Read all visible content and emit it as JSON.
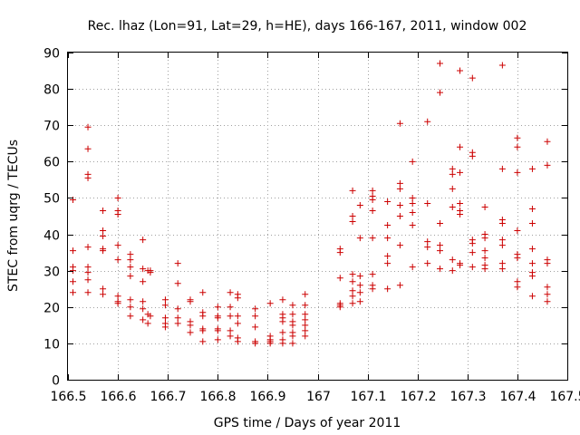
{
  "chart_data": {
    "type": "scatter",
    "title": "Rec. lhaz (Lon=91, Lat=29, h=HE), days 166-167, 2011, window 002",
    "xlabel": "GPS time / Days of year 2011",
    "ylabel": "STEC from uqrg / TECUs",
    "xlim": [
      166.5,
      167.5
    ],
    "ylim": [
      0,
      90
    ],
    "xticks": [
      "166.5",
      "166.6",
      "166.7",
      "166.8",
      "166.9",
      "167",
      "167.1",
      "167.2",
      "167.3",
      "167.4",
      "167.5"
    ],
    "yticks": [
      "0",
      "10",
      "20",
      "30",
      "40",
      "50",
      "60",
      "70",
      "80",
      "90"
    ],
    "grid": true,
    "marker_color": "#cc0000",
    "points": [
      [
        166.51,
        49.5
      ],
      [
        166.51,
        35.5
      ],
      [
        166.51,
        31
      ],
      [
        166.51,
        30
      ],
      [
        166.51,
        27
      ],
      [
        166.51,
        24
      ],
      [
        166.54,
        69.5
      ],
      [
        166.54,
        63.5
      ],
      [
        166.54,
        56.5
      ],
      [
        166.54,
        55.5
      ],
      [
        166.54,
        36.5
      ],
      [
        166.54,
        31
      ],
      [
        166.54,
        29.5
      ],
      [
        166.54,
        27.5
      ],
      [
        166.54,
        24
      ],
      [
        166.57,
        46.5
      ],
      [
        166.57,
        41
      ],
      [
        166.57,
        39.5
      ],
      [
        166.57,
        36
      ],
      [
        166.57,
        35.5
      ],
      [
        166.57,
        25
      ],
      [
        166.57,
        23.5
      ],
      [
        166.6,
        50
      ],
      [
        166.6,
        46.5
      ],
      [
        166.6,
        45.5
      ],
      [
        166.6,
        37
      ],
      [
        166.6,
        33
      ],
      [
        166.6,
        23
      ],
      [
        166.6,
        21.5
      ],
      [
        166.6,
        21
      ],
      [
        166.625,
        34.5
      ],
      [
        166.625,
        33
      ],
      [
        166.625,
        31
      ],
      [
        166.625,
        28.5
      ],
      [
        166.625,
        22
      ],
      [
        166.625,
        20
      ],
      [
        166.625,
        17.5
      ],
      [
        166.65,
        38.5
      ],
      [
        166.65,
        30.5
      ],
      [
        166.65,
        27
      ],
      [
        166.65,
        21.5
      ],
      [
        166.65,
        19.5
      ],
      [
        166.65,
        16.5
      ],
      [
        166.66,
        30
      ],
      [
        166.66,
        18
      ],
      [
        166.66,
        15.5
      ],
      [
        166.665,
        30
      ],
      [
        166.665,
        29.5
      ],
      [
        166.665,
        17.5
      ],
      [
        166.695,
        22
      ],
      [
        166.695,
        20.5
      ],
      [
        166.695,
        17
      ],
      [
        166.695,
        15.5
      ],
      [
        166.695,
        14.5
      ],
      [
        166.72,
        32
      ],
      [
        166.72,
        26.5
      ],
      [
        166.72,
        19.5
      ],
      [
        166.72,
        17
      ],
      [
        166.72,
        15.5
      ],
      [
        166.745,
        22
      ],
      [
        166.745,
        21.5
      ],
      [
        166.745,
        16
      ],
      [
        166.745,
        15
      ],
      [
        166.745,
        13
      ],
      [
        166.77,
        24
      ],
      [
        166.77,
        18.5
      ],
      [
        166.77,
        17.5
      ],
      [
        166.77,
        14
      ],
      [
        166.77,
        13.5
      ],
      [
        166.77,
        10.5
      ],
      [
        166.8,
        20
      ],
      [
        166.8,
        17.5
      ],
      [
        166.8,
        17
      ],
      [
        166.8,
        14
      ],
      [
        166.8,
        13.5
      ],
      [
        166.8,
        11
      ],
      [
        166.825,
        24
      ],
      [
        166.825,
        20
      ],
      [
        166.825,
        17.5
      ],
      [
        166.825,
        13.5
      ],
      [
        166.825,
        12
      ],
      [
        166.84,
        23.5
      ],
      [
        166.84,
        22.5
      ],
      [
        166.84,
        17.5
      ],
      [
        166.84,
        15.5
      ],
      [
        166.84,
        11.5
      ],
      [
        166.84,
        10.5
      ],
      [
        166.875,
        19.5
      ],
      [
        166.875,
        17.5
      ],
      [
        166.875,
        14.5
      ],
      [
        166.875,
        10.5
      ],
      [
        166.875,
        10
      ],
      [
        166.905,
        21
      ],
      [
        166.905,
        12
      ],
      [
        166.905,
        11
      ],
      [
        166.905,
        10.5
      ],
      [
        166.905,
        10
      ],
      [
        166.93,
        22
      ],
      [
        166.93,
        18
      ],
      [
        166.93,
        17
      ],
      [
        166.93,
        16
      ],
      [
        166.93,
        13
      ],
      [
        166.93,
        11
      ],
      [
        166.93,
        10
      ],
      [
        166.95,
        20.5
      ],
      [
        166.95,
        18
      ],
      [
        166.95,
        16
      ],
      [
        166.95,
        15
      ],
      [
        166.95,
        13
      ],
      [
        166.95,
        12
      ],
      [
        166.95,
        10
      ],
      [
        166.975,
        23.5
      ],
      [
        166.975,
        20.5
      ],
      [
        166.975,
        18
      ],
      [
        166.975,
        16.5
      ],
      [
        166.975,
        15
      ],
      [
        166.975,
        13.5
      ],
      [
        166.975,
        12
      ],
      [
        167.045,
        36
      ],
      [
        167.045,
        35
      ],
      [
        167.045,
        28
      ],
      [
        167.045,
        21
      ],
      [
        167.045,
        20.5
      ],
      [
        167.045,
        20
      ],
      [
        167.07,
        52
      ],
      [
        167.07,
        45
      ],
      [
        167.07,
        43.5
      ],
      [
        167.07,
        29
      ],
      [
        167.07,
        27
      ],
      [
        167.07,
        24.5
      ],
      [
        167.07,
        23
      ],
      [
        167.07,
        21
      ],
      [
        167.085,
        48
      ],
      [
        167.085,
        39
      ],
      [
        167.085,
        28.5
      ],
      [
        167.085,
        26
      ],
      [
        167.085,
        24
      ],
      [
        167.085,
        21.5
      ],
      [
        167.11,
        52
      ],
      [
        167.11,
        50.5
      ],
      [
        167.11,
        49.5
      ],
      [
        167.11,
        46.5
      ],
      [
        167.11,
        39
      ],
      [
        167.11,
        29
      ],
      [
        167.11,
        26
      ],
      [
        167.11,
        25
      ],
      [
        167.14,
        49
      ],
      [
        167.14,
        42.5
      ],
      [
        167.14,
        39
      ],
      [
        167.14,
        34
      ],
      [
        167.14,
        32
      ],
      [
        167.14,
        25
      ],
      [
        167.165,
        70.5
      ],
      [
        167.165,
        54
      ],
      [
        167.165,
        52.5
      ],
      [
        167.165,
        48
      ],
      [
        167.165,
        45
      ],
      [
        167.165,
        37
      ],
      [
        167.165,
        26
      ],
      [
        167.19,
        60
      ],
      [
        167.19,
        50
      ],
      [
        167.19,
        48.5
      ],
      [
        167.19,
        46
      ],
      [
        167.19,
        42.5
      ],
      [
        167.19,
        31
      ],
      [
        167.22,
        71
      ],
      [
        167.22,
        48.5
      ],
      [
        167.22,
        38
      ],
      [
        167.22,
        36.5
      ],
      [
        167.22,
        32
      ],
      [
        167.245,
        87
      ],
      [
        167.245,
        79
      ],
      [
        167.245,
        43
      ],
      [
        167.245,
        37
      ],
      [
        167.245,
        35.5
      ],
      [
        167.245,
        30.5
      ],
      [
        167.27,
        58
      ],
      [
        167.27,
        56.5
      ],
      [
        167.27,
        52.5
      ],
      [
        167.27,
        47.5
      ],
      [
        167.27,
        33
      ],
      [
        167.27,
        30
      ],
      [
        167.285,
        85
      ],
      [
        167.285,
        64
      ],
      [
        167.285,
        57
      ],
      [
        167.285,
        48.5
      ],
      [
        167.285,
        46.5
      ],
      [
        167.285,
        45.5
      ],
      [
        167.285,
        32
      ],
      [
        167.285,
        31.5
      ],
      [
        167.31,
        83
      ],
      [
        167.31,
        62.5
      ],
      [
        167.31,
        61.5
      ],
      [
        167.31,
        38.5
      ],
      [
        167.31,
        37.5
      ],
      [
        167.31,
        35
      ],
      [
        167.31,
        31
      ],
      [
        167.335,
        47.5
      ],
      [
        167.335,
        40
      ],
      [
        167.335,
        39
      ],
      [
        167.335,
        35.5
      ],
      [
        167.335,
        33.5
      ],
      [
        167.335,
        31.5
      ],
      [
        167.335,
        30.5
      ],
      [
        167.37,
        86.5
      ],
      [
        167.37,
        58
      ],
      [
        167.37,
        44
      ],
      [
        167.37,
        43
      ],
      [
        167.37,
        38.5
      ],
      [
        167.37,
        37
      ],
      [
        167.37,
        32
      ],
      [
        167.37,
        30.5
      ],
      [
        167.4,
        66.5
      ],
      [
        167.4,
        64
      ],
      [
        167.4,
        57
      ],
      [
        167.4,
        41
      ],
      [
        167.4,
        34.5
      ],
      [
        167.4,
        33.5
      ],
      [
        167.4,
        27
      ],
      [
        167.4,
        25.5
      ],
      [
        167.43,
        58
      ],
      [
        167.43,
        47
      ],
      [
        167.43,
        43
      ],
      [
        167.43,
        36
      ],
      [
        167.43,
        32
      ],
      [
        167.43,
        29.5
      ],
      [
        167.43,
        28.5
      ],
      [
        167.43,
        23
      ],
      [
        167.46,
        65.5
      ],
      [
        167.46,
        59
      ],
      [
        167.46,
        33
      ],
      [
        167.46,
        32
      ],
      [
        167.46,
        25.5
      ],
      [
        167.46,
        23.5
      ],
      [
        167.46,
        21.5
      ]
    ]
  }
}
